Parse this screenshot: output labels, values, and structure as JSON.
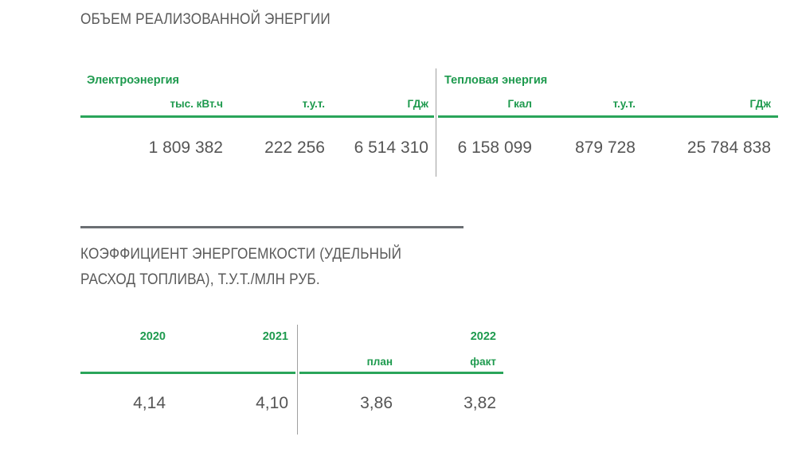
{
  "section1": {
    "title": "ОБЪЕМ РЕАЛИЗОВАННОЙ ЭНЕРГИИ",
    "electricity": {
      "label": "Электроэнергия",
      "units": [
        "тыс. кВт.ч",
        "т.у.т.",
        "ГДж"
      ],
      "values": [
        "1 809 382",
        "222 256",
        "6 514 310"
      ]
    },
    "heat": {
      "label": "Тепловая энергия",
      "units": [
        "Гкал",
        "т.у.т.",
        "ГДж"
      ],
      "values": [
        "6 158 099",
        "879 728",
        "25 784 838"
      ]
    }
  },
  "section2": {
    "title_line1": "КОЭФФИЦИЕНТ ЭНЕРГОЕМКОСТИ (УДЕЛЬНЫЙ",
    "title_line2": "РАСХОД ТОПЛИВА), Т.У.Т./МЛН РУБ.",
    "years": [
      "2020",
      "2021",
      "2022"
    ],
    "sub": [
      "план",
      "факт"
    ],
    "values": [
      "4,14",
      "4,10",
      "3,86",
      "3,82"
    ]
  },
  "colors": {
    "accent_green": "#1e9a4e",
    "text_gray": "#555555",
    "divider": "#6b6f73"
  }
}
